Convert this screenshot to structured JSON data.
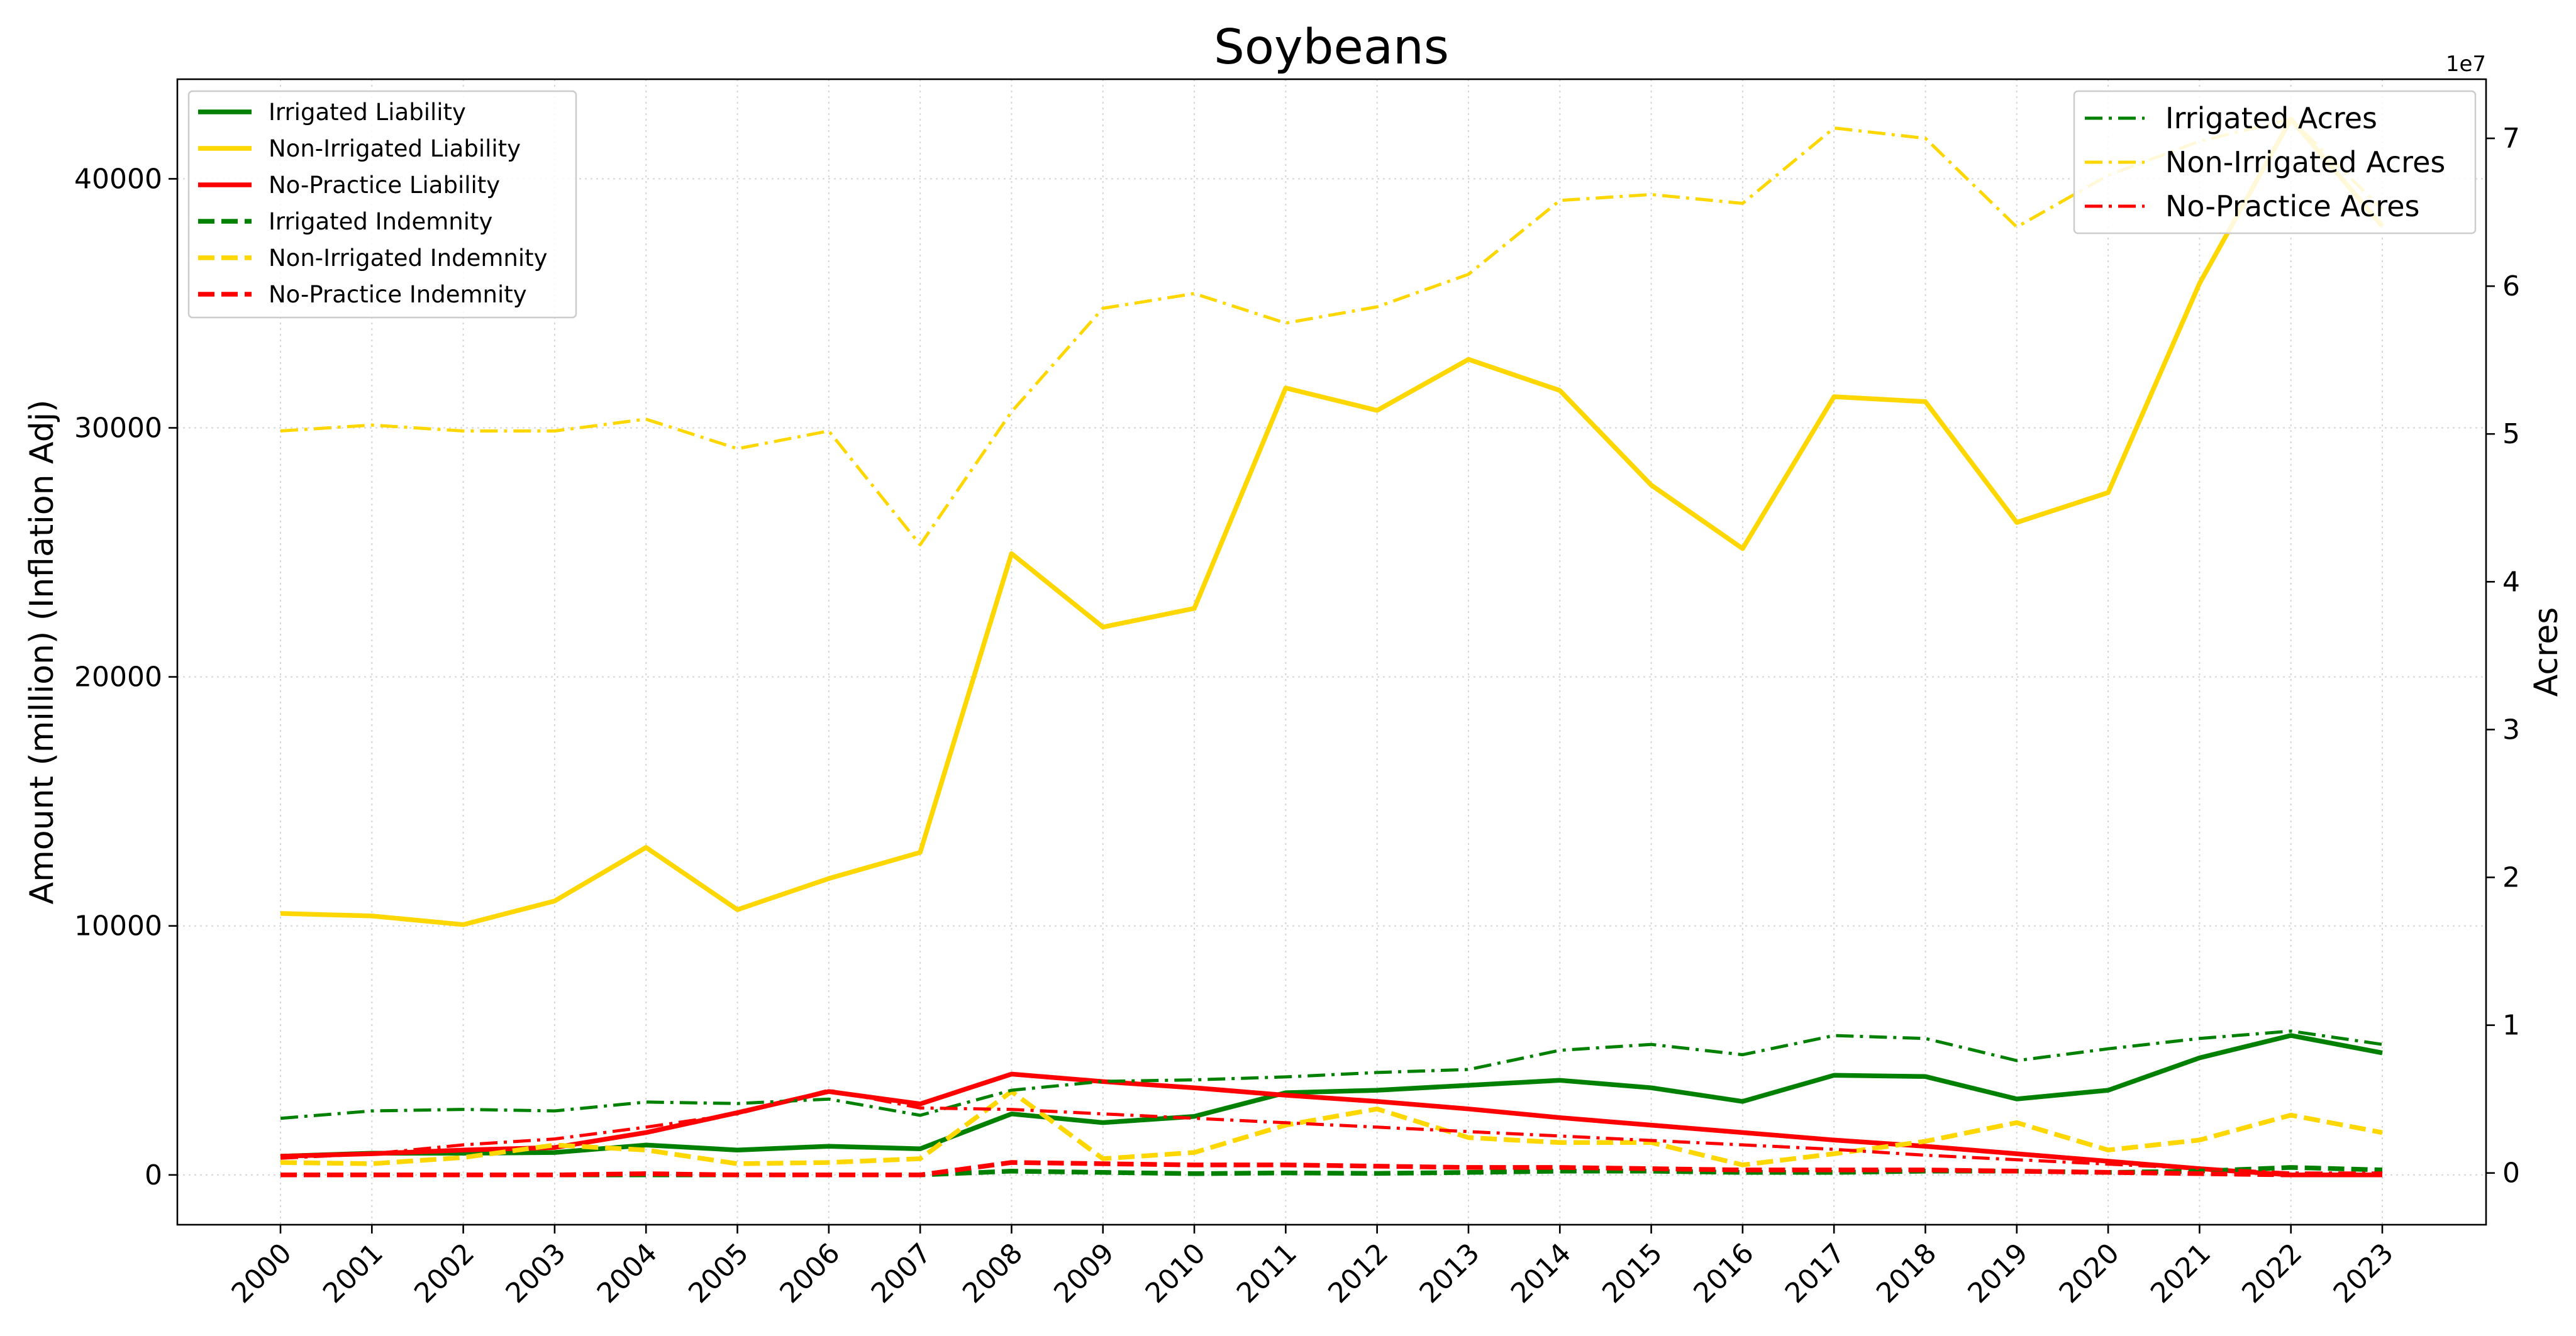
{
  "chart_data": {
    "type": "line",
    "title": "Soybeans",
    "ylabel": "Amount (million) (Inflation Adj)",
    "y2label": "Acres",
    "y2_offset_text": "1e7",
    "x": [
      "2000",
      "2001",
      "2002",
      "2003",
      "2004",
      "2005",
      "2006",
      "2007",
      "2008",
      "2009",
      "2010",
      "2011",
      "2012",
      "2013",
      "2014",
      "2015",
      "2016",
      "2017",
      "2018",
      "2019",
      "2020",
      "2021",
      "2022",
      "2023"
    ],
    "ylim": [
      -2000,
      44000
    ],
    "y2lim": [
      -3500000,
      74000000
    ],
    "yticks": [
      "0",
      "10000",
      "20000",
      "30000",
      "40000"
    ],
    "y2ticks": [
      "0",
      "1",
      "2",
      "3",
      "4",
      "5",
      "6",
      "7"
    ],
    "grid": true,
    "legend_left": "upper-left",
    "legend_right": "upper-right",
    "series": [
      {
        "name": "Irrigated Liability",
        "axis": "left",
        "style": "solid",
        "color": "#008000",
        "values": [
          750,
          870,
          870,
          900,
          1200,
          1000,
          1150,
          1050,
          2450,
          2100,
          2350,
          3300,
          3400,
          3600,
          3800,
          3500,
          2950,
          4000,
          3950,
          3050,
          3400,
          4700,
          5600,
          4900
        ]
      },
      {
        "name": "Non-Irrigated Liability",
        "axis": "left",
        "style": "solid",
        "color": "#FFD700",
        "values": [
          10500,
          10400,
          10050,
          11000,
          13150,
          10650,
          11900,
          12950,
          24950,
          22000,
          22750,
          31600,
          30700,
          32750,
          31500,
          27700,
          25150,
          31250,
          31050,
          26200,
          27400,
          35800,
          42400,
          38100
        ]
      },
      {
        "name": "No-Practice Liability",
        "axis": "left",
        "style": "solid",
        "color": "#FF0000",
        "values": [
          750,
          850,
          1000,
          1100,
          1700,
          2500,
          3350,
          2850,
          4050,
          3750,
          3500,
          3200,
          2950,
          2650,
          2300,
          2000,
          1700,
          1400,
          1150,
          850,
          550,
          250,
          0,
          0
        ]
      },
      {
        "name": "Irrigated Indemnity",
        "axis": "left",
        "style": "dashed",
        "color": "#008000",
        "values": [
          0,
          0,
          0,
          0,
          0,
          0,
          0,
          0,
          150,
          100,
          50,
          80,
          60,
          100,
          150,
          150,
          100,
          100,
          150,
          150,
          100,
          150,
          300,
          200
        ]
      },
      {
        "name": "Non-Irrigated Indemnity",
        "axis": "left",
        "style": "dashed",
        "color": "#FFD700",
        "values": [
          500,
          450,
          700,
          1200,
          1000,
          450,
          500,
          650,
          3350,
          650,
          900,
          2000,
          2650,
          1500,
          1300,
          1300,
          400,
          850,
          1350,
          2100,
          1000,
          1400,
          2400,
          1700
        ]
      },
      {
        "name": "No-Practice Indemnity",
        "axis": "left",
        "style": "dashed",
        "color": "#FF0000",
        "values": [
          0,
          0,
          0,
          0,
          50,
          0,
          0,
          0,
          500,
          450,
          400,
          400,
          350,
          300,
          300,
          250,
          200,
          200,
          200,
          150,
          100,
          50,
          0,
          0
        ]
      },
      {
        "name": "Irrigated Acres",
        "axis": "right",
        "style": "dashdot",
        "color": "#008000",
        "values": [
          3700000,
          4200000,
          4300000,
          4200000,
          4800000,
          4700000,
          5000000,
          3900000,
          5600000,
          6200000,
          6300000,
          6500000,
          6800000,
          7000000,
          8300000,
          8700000,
          8000000,
          9300000,
          9100000,
          7600000,
          8400000,
          9100000,
          9600000,
          8700000
        ]
      },
      {
        "name": "Non-Irrigated Acres",
        "axis": "right",
        "style": "dashdot",
        "color": "#FFD700",
        "values": [
          50200000,
          50600000,
          50200000,
          50200000,
          51000000,
          49000000,
          50200000,
          42500000,
          51500000,
          58500000,
          59500000,
          57500000,
          58600000,
          60800000,
          65800000,
          66200000,
          65600000,
          70700000,
          70000000,
          64000000,
          67500000,
          69800000,
          71300000,
          65200000
        ]
      },
      {
        "name": "No-Practice Acres",
        "axis": "right",
        "style": "dashdot",
        "color": "#FF0000",
        "values": [
          1000000,
          1300000,
          1900000,
          2300000,
          3100000,
          4000000,
          5600000,
          4400000,
          4300000,
          4000000,
          3700000,
          3400000,
          3100000,
          2800000,
          2500000,
          2200000,
          1900000,
          1600000,
          1200000,
          900000,
          600000,
          300000,
          0,
          0
        ]
      }
    ]
  }
}
